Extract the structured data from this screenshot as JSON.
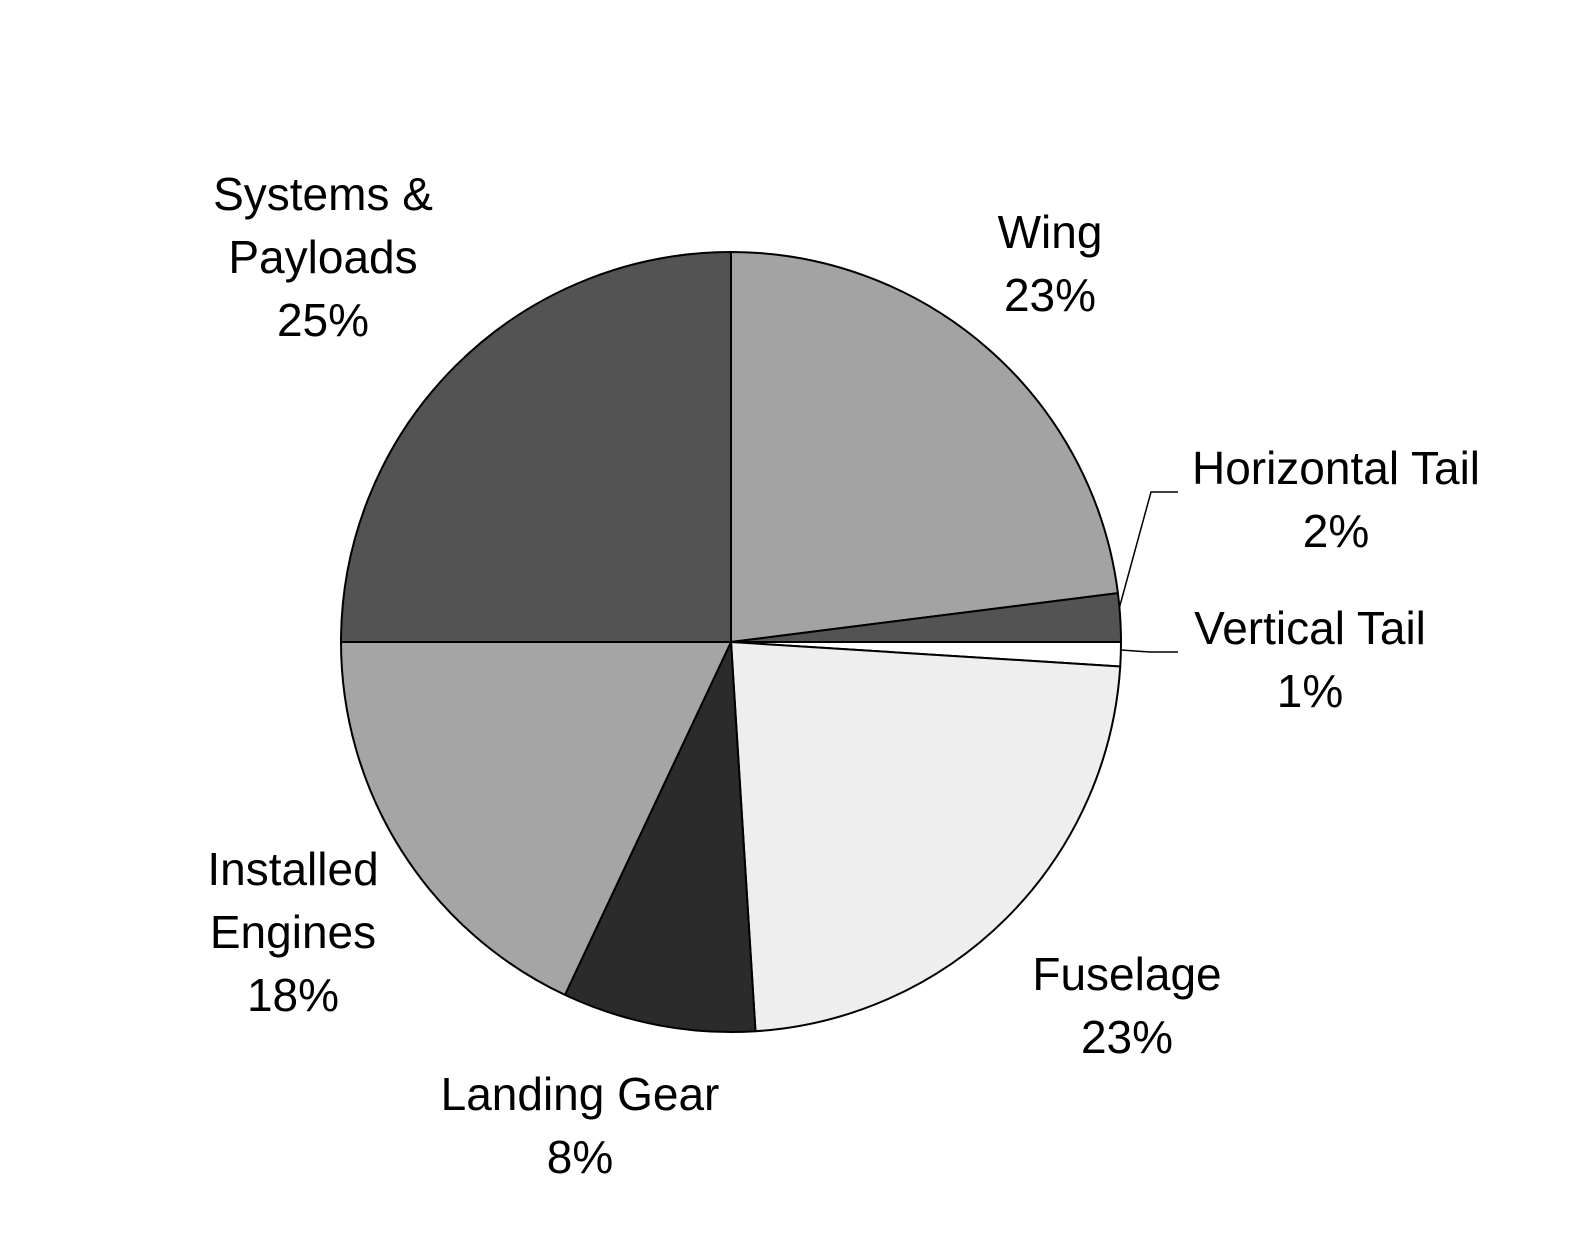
{
  "chart_data": {
    "type": "pie",
    "slices": [
      {
        "category": "Wing",
        "value": 23,
        "label_lines": [
          "Wing",
          "23%"
        ],
        "color": "#a3a3a3"
      },
      {
        "category": "Horizontal Tail",
        "value": 2,
        "label_lines": [
          "Horizontal Tail",
          "2%"
        ],
        "color": "#535353"
      },
      {
        "category": "Vertical Tail",
        "value": 1,
        "label_lines": [
          "Vertical Tail",
          "1%"
        ],
        "color": "#ffffff"
      },
      {
        "category": "Fuselage",
        "value": 23,
        "label_lines": [
          "Fuselage",
          "23%"
        ],
        "color": "#eeeeee"
      },
      {
        "category": "Landing Gear",
        "value": 8,
        "label_lines": [
          "Landing Gear",
          "8%"
        ],
        "color": "#2b2b2b"
      },
      {
        "category": "Installed Engines",
        "value": 18,
        "label_lines": [
          "Installed",
          "Engines",
          "18%"
        ],
        "color": "#a5a5a5"
      },
      {
        "category": "Systems & Payloads",
        "value": 25,
        "label_lines": [
          "Systems &",
          "Payloads",
          "25%"
        ],
        "color": "#535353"
      }
    ],
    "start_angle_deg": 0,
    "direction": "clockwise",
    "title": "",
    "legend": "none"
  }
}
